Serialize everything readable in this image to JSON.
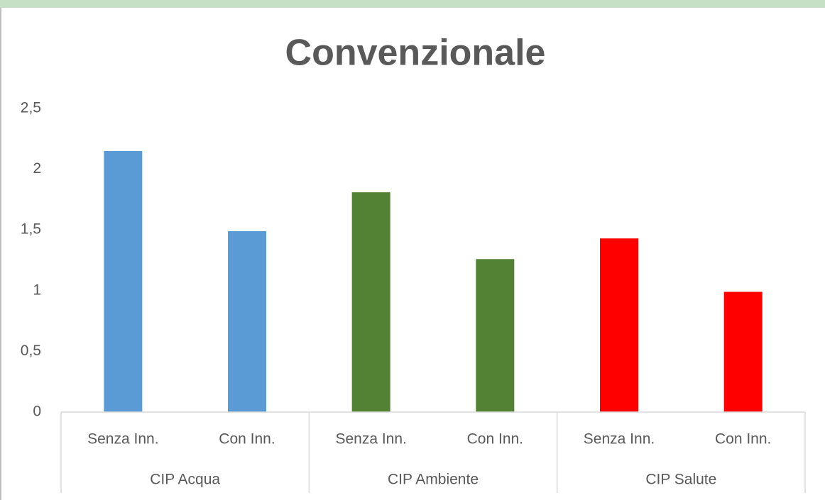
{
  "chart_data": {
    "type": "bar",
    "title": "Convenzionale",
    "groups": [
      {
        "name": "CIP Acqua",
        "color": "#5b9bd5",
        "categories": [
          "Senza Inn.",
          "Con Inn."
        ],
        "values": [
          2.15,
          1.49
        ]
      },
      {
        "name": "CIP Ambiente",
        "color": "#548235",
        "categories": [
          "Senza Inn.",
          "Con Inn."
        ],
        "values": [
          1.81,
          1.26
        ]
      },
      {
        "name": "CIP Salute",
        "color": "#ff0000",
        "categories": [
          "Senza Inn.",
          "Con Inn."
        ],
        "values": [
          1.43,
          0.99
        ]
      }
    ],
    "ylim": [
      0,
      2.5
    ],
    "yticks": [
      0,
      {
        "value": 0.5,
        "label": "0,5"
      },
      1,
      {
        "value": 1.5,
        "label": "1,5"
      },
      2,
      {
        "value": 2.5,
        "label": "2,5"
      }
    ],
    "grid": false
  }
}
